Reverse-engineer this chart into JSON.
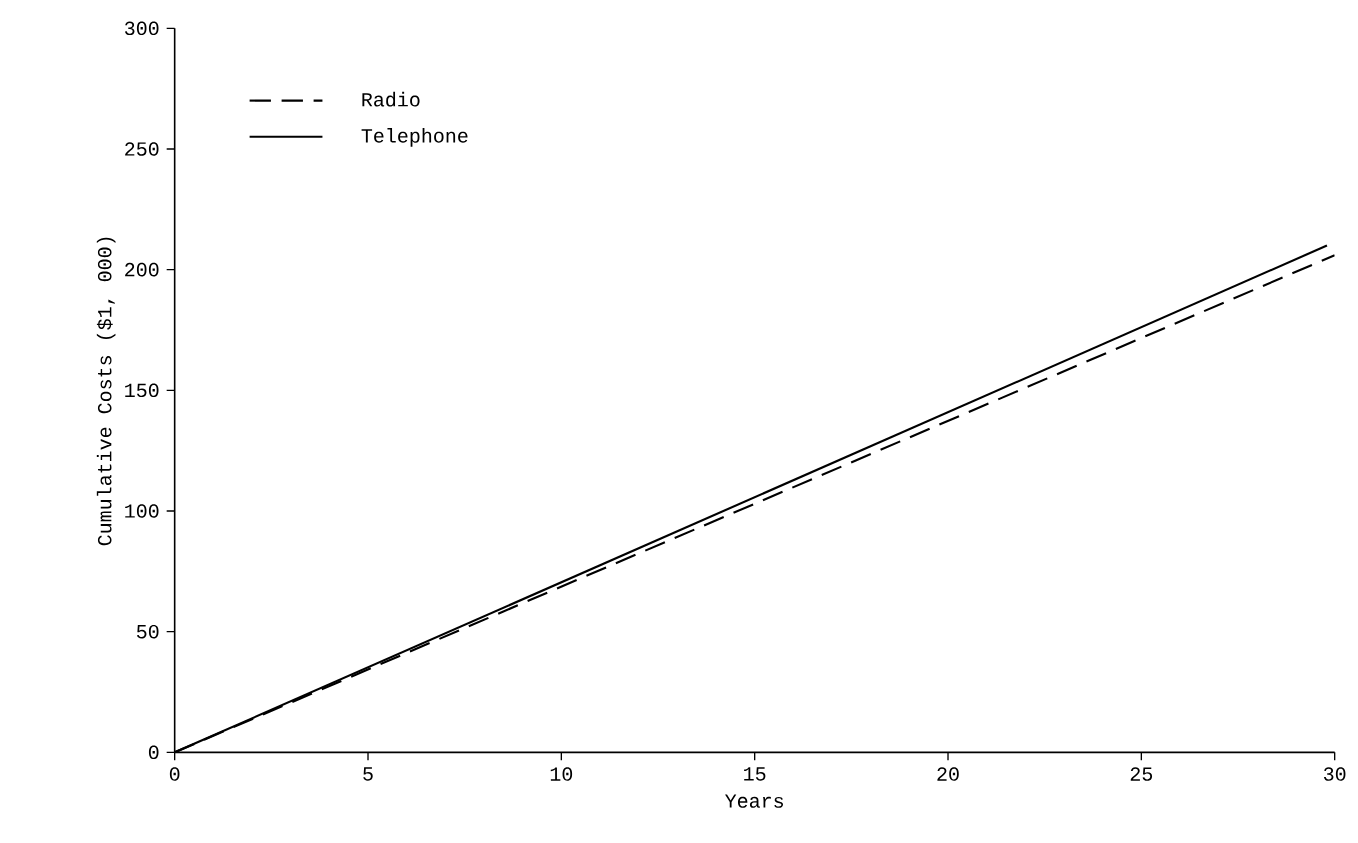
{
  "chart_data": {
    "type": "line",
    "xlabel": "Years",
    "ylabel": "Cumulative Costs ($1, 000)",
    "xlim": [
      0,
      30
    ],
    "ylim": [
      0,
      300
    ],
    "xticks": [
      0,
      5,
      10,
      15,
      20,
      25,
      30
    ],
    "yticks": [
      0,
      50,
      100,
      150,
      200,
      250,
      300
    ],
    "grid": false,
    "legend": "top left",
    "marker": "none",
    "series": [
      {
        "name": "Radio",
        "color": "#000000",
        "line_style": "dashed",
        "x": [
          0,
          30
        ],
        "values": [
          0,
          206
        ]
      },
      {
        "name": "Telephone",
        "color": "#000000",
        "line_style": "solid",
        "x": [
          0,
          29.8
        ],
        "values": [
          0,
          210
        ]
      }
    ]
  }
}
